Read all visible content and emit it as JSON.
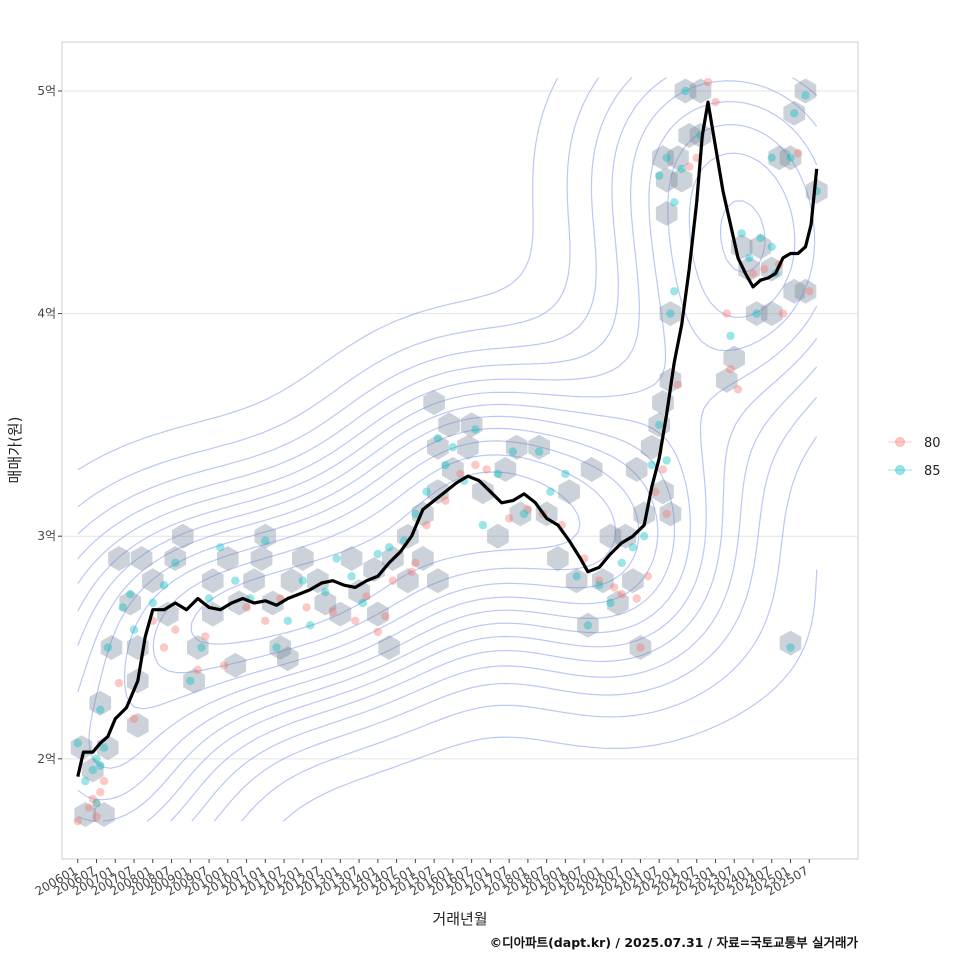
{
  "chart_data": {
    "type": "scatter",
    "xlabel": "거래년월",
    "ylabel": "매매가(원)",
    "y_ticks": [
      {
        "value": 2.0,
        "label": "2억"
      },
      {
        "value": 3.0,
        "label": "3억"
      },
      {
        "value": 4.0,
        "label": "4억"
      },
      {
        "value": 5.0,
        "label": "5억"
      }
    ],
    "ylim": [
      1.55,
      5.22
    ],
    "xlim": [
      2005.58,
      2026.8
    ],
    "x_ticks": [
      "200601",
      "200607",
      "200701",
      "200707",
      "200801",
      "200807",
      "200901",
      "200907",
      "201001",
      "201007",
      "201101",
      "201107",
      "201201",
      "201207",
      "201301",
      "201307",
      "201401",
      "201407",
      "201501",
      "201507",
      "201601",
      "201607",
      "201701",
      "201707",
      "201801",
      "201807",
      "201901",
      "201907",
      "202001",
      "202007",
      "202101",
      "202107",
      "202201",
      "202207",
      "202301",
      "202307",
      "202401",
      "202407",
      "202501",
      "202507"
    ],
    "legend": {
      "position": "right",
      "entries": [
        {
          "name": "80",
          "color": "#F8766D"
        },
        {
          "name": "85",
          "color": "#00BFC4"
        }
      ]
    },
    "series": [
      {
        "name": "80",
        "color": "#F8766D",
        "points": [
          [
            2006.0,
            1.72
          ],
          [
            2006.3,
            1.78
          ],
          [
            2006.5,
            1.8
          ],
          [
            2006.6,
            1.85
          ],
          [
            2006.7,
            1.9
          ],
          [
            2006.5,
            1.74
          ],
          [
            2006.4,
            1.82
          ],
          [
            2007.1,
            2.34
          ],
          [
            2007.5,
            2.18
          ],
          [
            2008.0,
            2.62
          ],
          [
            2008.3,
            2.5
          ],
          [
            2008.6,
            2.58
          ],
          [
            2009.2,
            2.4
          ],
          [
            2009.4,
            2.55
          ],
          [
            2009.9,
            2.42
          ],
          [
            2010.5,
            2.68
          ],
          [
            2011.0,
            2.62
          ],
          [
            2011.4,
            2.72
          ],
          [
            2012.1,
            2.68
          ],
          [
            2012.8,
            2.66
          ],
          [
            2013.4,
            2.62
          ],
          [
            2013.7,
            2.73
          ],
          [
            2014.0,
            2.57
          ],
          [
            2014.2,
            2.64
          ],
          [
            2014.4,
            2.8
          ],
          [
            2014.9,
            2.84
          ],
          [
            2015.0,
            2.88
          ],
          [
            2015.3,
            3.05
          ],
          [
            2015.8,
            3.16
          ],
          [
            2016.2,
            3.28
          ],
          [
            2016.6,
            3.32
          ],
          [
            2016.9,
            3.3
          ],
          [
            2017.5,
            3.08
          ],
          [
            2018.0,
            3.12
          ],
          [
            2018.4,
            3.1
          ],
          [
            2018.9,
            3.05
          ],
          [
            2019.5,
            2.9
          ],
          [
            2019.9,
            2.8
          ],
          [
            2020.3,
            2.77
          ],
          [
            2020.5,
            2.74
          ],
          [
            2020.9,
            2.72
          ],
          [
            2021.2,
            2.82
          ],
          [
            2021.0,
            2.5
          ],
          [
            2021.4,
            3.2
          ],
          [
            2021.6,
            3.3
          ],
          [
            2021.7,
            3.1
          ],
          [
            2022.0,
            3.68
          ],
          [
            2022.3,
            4.66
          ],
          [
            2022.5,
            4.7
          ],
          [
            2022.8,
            5.04
          ],
          [
            2023.0,
            4.95
          ],
          [
            2023.3,
            4.0
          ],
          [
            2023.4,
            3.75
          ],
          [
            2023.6,
            3.66
          ],
          [
            2024.0,
            4.18
          ],
          [
            2024.3,
            4.2
          ],
          [
            2024.8,
            4.0
          ],
          [
            2025.2,
            4.72
          ],
          [
            2024.7,
            4.22
          ],
          [
            2025.5,
            4.1
          ]
        ]
      },
      {
        "name": "85",
        "color": "#00BFC4",
        "points": [
          [
            2006.0,
            2.07
          ],
          [
            2006.2,
            1.9
          ],
          [
            2006.4,
            1.95
          ],
          [
            2006.5,
            2.0
          ],
          [
            2006.6,
            1.97
          ],
          [
            2006.7,
            2.05
          ],
          [
            2006.5,
            1.8
          ],
          [
            2006.6,
            2.22
          ],
          [
            2006.8,
            2.5
          ],
          [
            2007.2,
            2.68
          ],
          [
            2007.4,
            2.74
          ],
          [
            2007.5,
            2.58
          ],
          [
            2008.0,
            2.7
          ],
          [
            2008.3,
            2.78
          ],
          [
            2008.6,
            2.88
          ],
          [
            2009.0,
            2.35
          ],
          [
            2009.3,
            2.5
          ],
          [
            2009.5,
            2.72
          ],
          [
            2009.8,
            2.95
          ],
          [
            2010.2,
            2.8
          ],
          [
            2010.6,
            2.72
          ],
          [
            2011.0,
            2.98
          ],
          [
            2011.3,
            2.5
          ],
          [
            2011.6,
            2.62
          ],
          [
            2012.0,
            2.8
          ],
          [
            2012.2,
            2.6
          ],
          [
            2012.6,
            2.75
          ],
          [
            2012.9,
            2.9
          ],
          [
            2013.3,
            2.82
          ],
          [
            2013.6,
            2.7
          ],
          [
            2014.0,
            2.92
          ],
          [
            2014.3,
            2.95
          ],
          [
            2014.7,
            2.98
          ],
          [
            2015.0,
            3.1
          ],
          [
            2015.3,
            3.2
          ],
          [
            2015.6,
            3.44
          ],
          [
            2015.8,
            3.32
          ],
          [
            2016.0,
            3.4
          ],
          [
            2016.3,
            3.25
          ],
          [
            2016.6,
            3.48
          ],
          [
            2016.8,
            3.05
          ],
          [
            2017.2,
            3.28
          ],
          [
            2017.6,
            3.38
          ],
          [
            2017.9,
            3.1
          ],
          [
            2018.3,
            3.38
          ],
          [
            2018.6,
            3.2
          ],
          [
            2019.0,
            3.28
          ],
          [
            2019.3,
            2.82
          ],
          [
            2019.6,
            2.6
          ],
          [
            2019.9,
            2.78
          ],
          [
            2020.2,
            2.7
          ],
          [
            2020.5,
            2.88
          ],
          [
            2020.8,
            2.95
          ],
          [
            2021.1,
            3.0
          ],
          [
            2021.3,
            3.32
          ],
          [
            2021.5,
            3.5
          ],
          [
            2021.7,
            3.34
          ],
          [
            2021.9,
            4.1
          ],
          [
            2021.8,
            4.0
          ],
          [
            2021.7,
            4.7
          ],
          [
            2021.5,
            4.62
          ],
          [
            2021.9,
            4.5
          ],
          [
            2022.1,
            4.65
          ],
          [
            2022.2,
            5.0
          ],
          [
            2022.6,
            4.8
          ],
          [
            2023.4,
            3.9
          ],
          [
            2023.7,
            4.36
          ],
          [
            2023.9,
            4.25
          ],
          [
            2024.2,
            4.34
          ],
          [
            2024.5,
            4.3
          ],
          [
            2024.6,
            4.18
          ],
          [
            2024.1,
            4.0
          ],
          [
            2024.5,
            4.7
          ],
          [
            2025.0,
            4.7
          ],
          [
            2025.1,
            4.9
          ],
          [
            2025.4,
            4.98
          ],
          [
            2025.0,
            2.5
          ],
          [
            2025.7,
            4.55
          ]
        ]
      }
    ],
    "hexbins": [
      [
        2006.1,
        2.05
      ],
      [
        2006.4,
        1.95
      ],
      [
        2006.2,
        1.75
      ],
      [
        2006.7,
        1.75
      ],
      [
        2006.8,
        2.05
      ],
      [
        2006.6,
        2.25
      ],
      [
        2006.9,
        2.5
      ],
      [
        2007.1,
        2.9
      ],
      [
        2007.4,
        2.7
      ],
      [
        2007.6,
        2.5
      ],
      [
        2007.6,
        2.15
      ],
      [
        2007.6,
        2.35
      ],
      [
        2007.7,
        2.9
      ],
      [
        2008.0,
        2.8
      ],
      [
        2008.4,
        2.65
      ],
      [
        2008.6,
        2.9
      ],
      [
        2008.8,
        3.0
      ],
      [
        2009.1,
        2.35
      ],
      [
        2009.2,
        2.5
      ],
      [
        2009.6,
        2.8
      ],
      [
        2009.6,
        2.65
      ],
      [
        2010.0,
        2.9
      ],
      [
        2010.2,
        2.42
      ],
      [
        2010.3,
        2.7
      ],
      [
        2010.7,
        2.8
      ],
      [
        2010.9,
        2.9
      ],
      [
        2011.0,
        3.0
      ],
      [
        2011.2,
        2.7
      ],
      [
        2011.4,
        2.5
      ],
      [
        2011.6,
        2.45
      ],
      [
        2011.7,
        2.8
      ],
      [
        2012.0,
        2.9
      ],
      [
        2012.4,
        2.8
      ],
      [
        2012.6,
        2.7
      ],
      [
        2013.0,
        2.65
      ],
      [
        2013.3,
        2.9
      ],
      [
        2013.5,
        2.75
      ],
      [
        2013.9,
        2.85
      ],
      [
        2014.0,
        2.65
      ],
      [
        2014.3,
        2.5
      ],
      [
        2014.4,
        2.9
      ],
      [
        2014.8,
        3.0
      ],
      [
        2014.8,
        2.8
      ],
      [
        2015.2,
        3.1
      ],
      [
        2015.2,
        2.9
      ],
      [
        2015.5,
        3.6
      ],
      [
        2015.6,
        3.2
      ],
      [
        2015.6,
        3.4
      ],
      [
        2015.6,
        2.8
      ],
      [
        2015.9,
        3.5
      ],
      [
        2016.0,
        3.3
      ],
      [
        2016.4,
        3.4
      ],
      [
        2016.5,
        3.5
      ],
      [
        2016.8,
        3.2
      ],
      [
        2017.2,
        3.0
      ],
      [
        2017.4,
        3.3
      ],
      [
        2017.7,
        3.4
      ],
      [
        2017.8,
        3.1
      ],
      [
        2018.3,
        3.4
      ],
      [
        2018.5,
        3.1
      ],
      [
        2018.8,
        2.9
      ],
      [
        2019.1,
        3.2
      ],
      [
        2019.3,
        2.8
      ],
      [
        2019.6,
        2.6
      ],
      [
        2019.7,
        3.3
      ],
      [
        2020.0,
        2.8
      ],
      [
        2020.2,
        3.0
      ],
      [
        2020.4,
        2.7
      ],
      [
        2020.6,
        3.0
      ],
      [
        2020.8,
        2.8
      ],
      [
        2020.9,
        3.3
      ],
      [
        2021.0,
        2.5
      ],
      [
        2021.1,
        3.1
      ],
      [
        2021.3,
        3.4
      ],
      [
        2021.5,
        3.5
      ],
      [
        2021.6,
        3.6
      ],
      [
        2021.6,
        3.2
      ],
      [
        2021.8,
        3.7
      ],
      [
        2021.8,
        3.1
      ],
      [
        2021.6,
        4.7
      ],
      [
        2021.7,
        4.6
      ],
      [
        2021.7,
        4.45
      ],
      [
        2021.8,
        4.0
      ],
      [
        2022.0,
        4.7
      ],
      [
        2022.1,
        4.6
      ],
      [
        2022.3,
        4.8
      ],
      [
        2022.2,
        5.0
      ],
      [
        2022.6,
        5.0
      ],
      [
        2022.6,
        4.8
      ],
      [
        2023.3,
        3.7
      ],
      [
        2023.5,
        3.8
      ],
      [
        2023.7,
        4.3
      ],
      [
        2023.9,
        4.2
      ],
      [
        2024.1,
        4.0
      ],
      [
        2024.2,
        4.3
      ],
      [
        2024.5,
        4.2
      ],
      [
        2024.5,
        4.0
      ],
      [
        2024.7,
        4.7
      ],
      [
        2025.0,
        4.7
      ],
      [
        2025.1,
        4.1
      ],
      [
        2025.1,
        4.9
      ],
      [
        2025.4,
        5.0
      ],
      [
        2025.4,
        4.1
      ],
      [
        2025.7,
        4.55
      ],
      [
        2025.0,
        2.52
      ]
    ],
    "trend_line": [
      [
        2006.0,
        1.92
      ],
      [
        2006.15,
        2.03
      ],
      [
        2006.4,
        2.03
      ],
      [
        2006.6,
        2.07
      ],
      [
        2006.8,
        2.1
      ],
      [
        2007.0,
        2.18
      ],
      [
        2007.3,
        2.23
      ],
      [
        2007.6,
        2.35
      ],
      [
        2007.8,
        2.55
      ],
      [
        2008.0,
        2.67
      ],
      [
        2008.3,
        2.67
      ],
      [
        2008.6,
        2.7
      ],
      [
        2008.9,
        2.67
      ],
      [
        2009.2,
        2.72
      ],
      [
        2009.5,
        2.68
      ],
      [
        2009.8,
        2.67
      ],
      [
        2010.1,
        2.7
      ],
      [
        2010.4,
        2.72
      ],
      [
        2010.7,
        2.7
      ],
      [
        2011.0,
        2.71
      ],
      [
        2011.3,
        2.69
      ],
      [
        2011.6,
        2.72
      ],
      [
        2011.9,
        2.74
      ],
      [
        2012.2,
        2.76
      ],
      [
        2012.5,
        2.79
      ],
      [
        2012.8,
        2.8
      ],
      [
        2013.1,
        2.78
      ],
      [
        2013.4,
        2.77
      ],
      [
        2013.7,
        2.8
      ],
      [
        2014.0,
        2.82
      ],
      [
        2014.3,
        2.88
      ],
      [
        2014.6,
        2.93
      ],
      [
        2014.9,
        3.0
      ],
      [
        2015.2,
        3.12
      ],
      [
        2015.5,
        3.16
      ],
      [
        2015.8,
        3.2
      ],
      [
        2016.1,
        3.24
      ],
      [
        2016.4,
        3.27
      ],
      [
        2016.7,
        3.25
      ],
      [
        2017.0,
        3.2
      ],
      [
        2017.3,
        3.15
      ],
      [
        2017.6,
        3.16
      ],
      [
        2017.9,
        3.19
      ],
      [
        2018.2,
        3.15
      ],
      [
        2018.5,
        3.08
      ],
      [
        2018.8,
        3.05
      ],
      [
        2019.1,
        2.98
      ],
      [
        2019.4,
        2.9
      ],
      [
        2019.6,
        2.84
      ],
      [
        2019.9,
        2.86
      ],
      [
        2020.2,
        2.92
      ],
      [
        2020.5,
        2.97
      ],
      [
        2020.8,
        3.0
      ],
      [
        2021.1,
        3.05
      ],
      [
        2021.3,
        3.22
      ],
      [
        2021.5,
        3.35
      ],
      [
        2021.7,
        3.55
      ],
      [
        2021.9,
        3.78
      ],
      [
        2022.1,
        3.95
      ],
      [
        2022.3,
        4.2
      ],
      [
        2022.5,
        4.5
      ],
      [
        2022.65,
        4.8
      ],
      [
        2022.8,
        4.95
      ],
      [
        2023.0,
        4.75
      ],
      [
        2023.2,
        4.55
      ],
      [
        2023.4,
        4.4
      ],
      [
        2023.6,
        4.25
      ],
      [
        2023.8,
        4.18
      ],
      [
        2024.0,
        4.12
      ],
      [
        2024.2,
        4.15
      ],
      [
        2024.4,
        4.16
      ],
      [
        2024.6,
        4.18
      ],
      [
        2024.8,
        4.25
      ],
      [
        2025.0,
        4.27
      ],
      [
        2025.2,
        4.27
      ],
      [
        2025.4,
        4.3
      ],
      [
        2025.55,
        4.4
      ],
      [
        2025.7,
        4.65
      ]
    ]
  },
  "caption": "©디아파트(dapt.kr) / 2025.07.31 / 자료=국토교통부 실거래가"
}
